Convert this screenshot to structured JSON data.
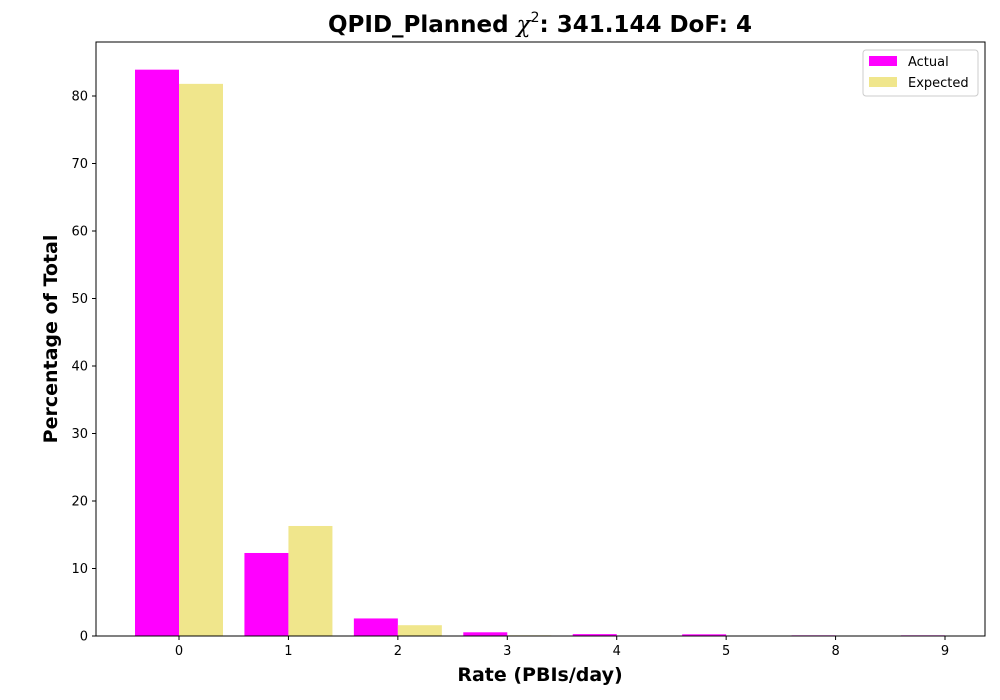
{
  "chart_data": {
    "type": "bar",
    "title": "QPID_Planned χ²: 341.144 DoF: 4",
    "title_parts": {
      "prefix": "QPID_Planned ",
      "chi": "χ",
      "sup": "2",
      "suffix": ": 341.144 DoF: 4"
    },
    "xlabel": "Rate (PBIs/day)",
    "ylabel": "Percentage of Total",
    "categories": [
      "0",
      "1",
      "2",
      "3",
      "4",
      "5",
      "8",
      "9"
    ],
    "series": [
      {
        "name": "Actual",
        "color": "#ff00ff",
        "values": [
          83.9,
          12.3,
          2.6,
          0.55,
          0.28,
          0.25,
          0.1,
          0.1
        ]
      },
      {
        "name": "Expected",
        "color": "#f0e68c",
        "values": [
          81.8,
          16.3,
          1.6,
          0.1,
          0.0,
          0.0,
          0.0,
          0.0
        ]
      }
    ],
    "ylim": [
      0,
      88
    ],
    "yticks": [
      0,
      10,
      20,
      30,
      40,
      50,
      60,
      70,
      80
    ],
    "grid": false,
    "legend_position": "top-right"
  }
}
